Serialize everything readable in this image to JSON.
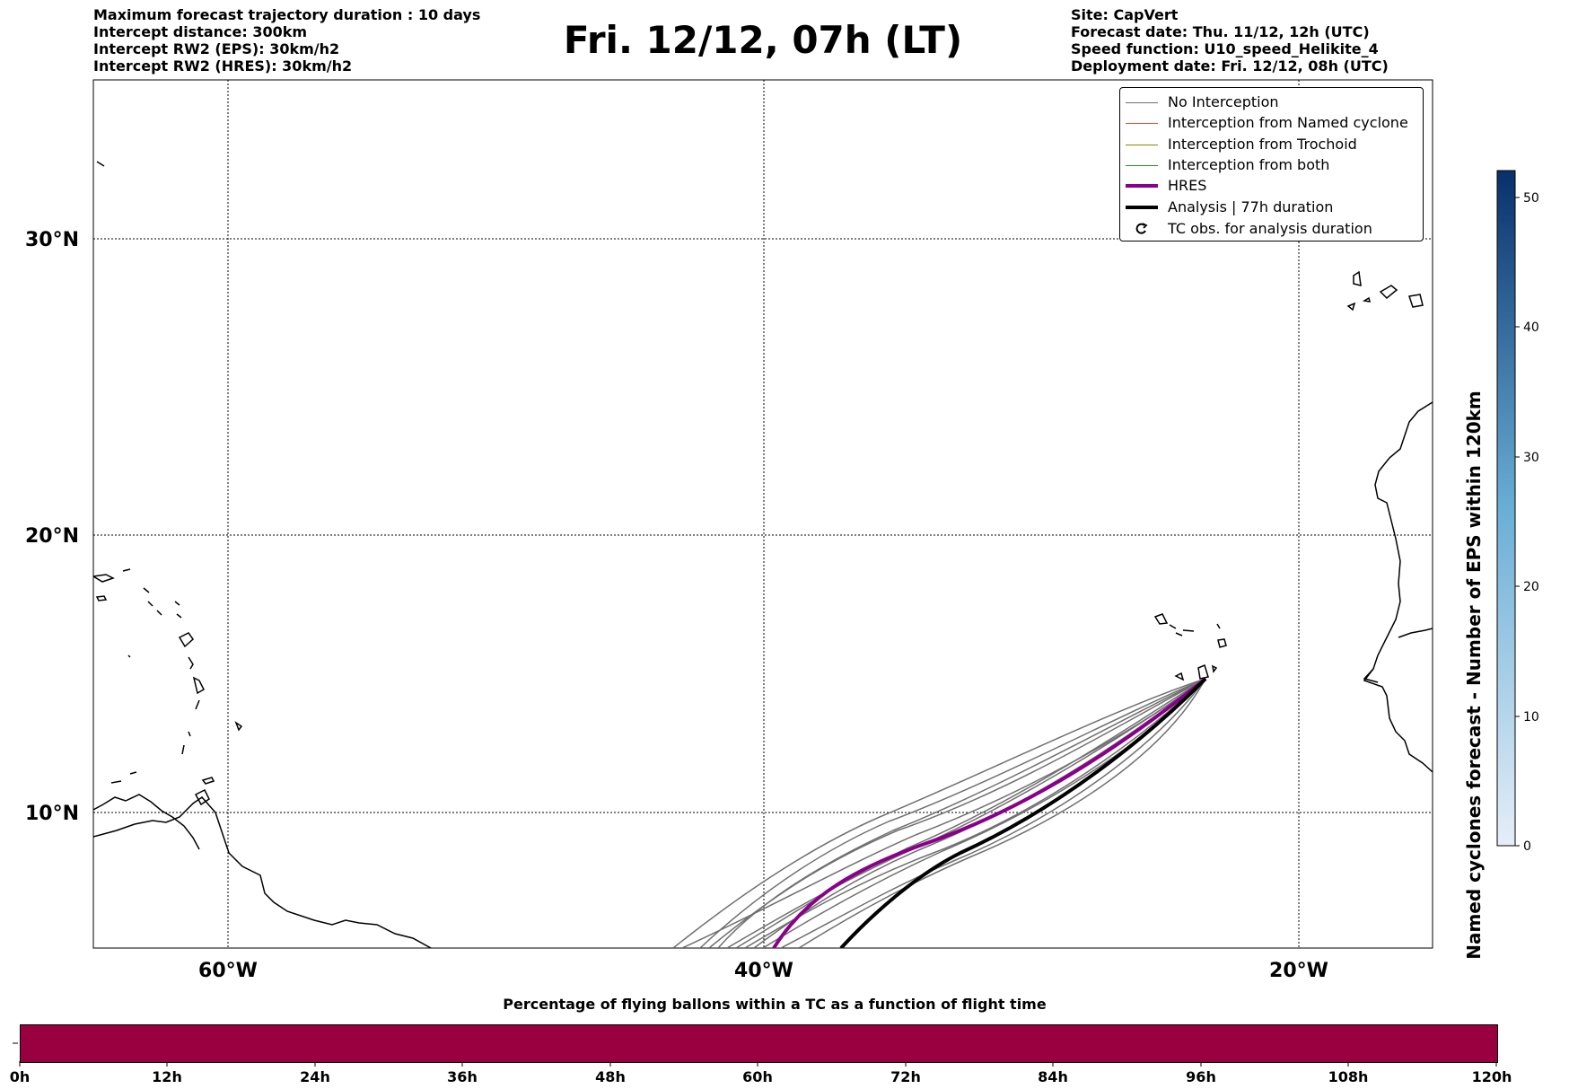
{
  "header_left": [
    "Maximum forecast trajectory duration : 10 days",
    "Intercept distance: 300km",
    "Intercept RW2 (EPS):  30km/h2",
    "Intercept RW2 (HRES): 30km/h2"
  ],
  "title": "Fri. 12/12, 07h (LT)",
  "header_right": [
    "Site: CapVert",
    "Forecast date: Thu. 11/12, 12h (UTC)",
    "Speed function: U10_speed_Helikite_4",
    "Deployment date: Fri. 12/12, 08h (UTC)"
  ],
  "map": {
    "lat_labels": [
      "30°N",
      "20°N",
      "10°N"
    ],
    "lon_labels": [
      "60°W",
      "40°W",
      "20°W"
    ]
  },
  "legend": [
    {
      "label": "No Interception",
      "color": "#707070"
    },
    {
      "label": "Interception from Named cyclone",
      "color": "#e8532b"
    },
    {
      "label": "Interception from Trochoid",
      "color": "#8a8a00"
    },
    {
      "label": "Interception from both",
      "color": "#2e8b2e"
    },
    {
      "label": "HRES",
      "color": "#8b008b"
    },
    {
      "label": "Analysis | 77h duration",
      "color": "#000000"
    },
    {
      "label": "TC obs. for analysis duration",
      "color": "#000000",
      "icon": "cyclone-symbol-icon"
    }
  ],
  "colorbar": {
    "label": "Named cyclones forecast - Number of EPS within 120km",
    "ticks": [
      "50",
      "40",
      "30",
      "20",
      "10",
      "0"
    ],
    "color_low": "#e6eef8",
    "color_high": "#08306b"
  },
  "flight_time": {
    "title": "Percentage of flying ballons within a TC as a function of flight time",
    "bar_color": "#9a0040",
    "ticks": [
      "0h",
      "12h",
      "24h",
      "36h",
      "48h",
      "60h",
      "72h",
      "84h",
      "96h",
      "108h",
      "120h"
    ]
  }
}
